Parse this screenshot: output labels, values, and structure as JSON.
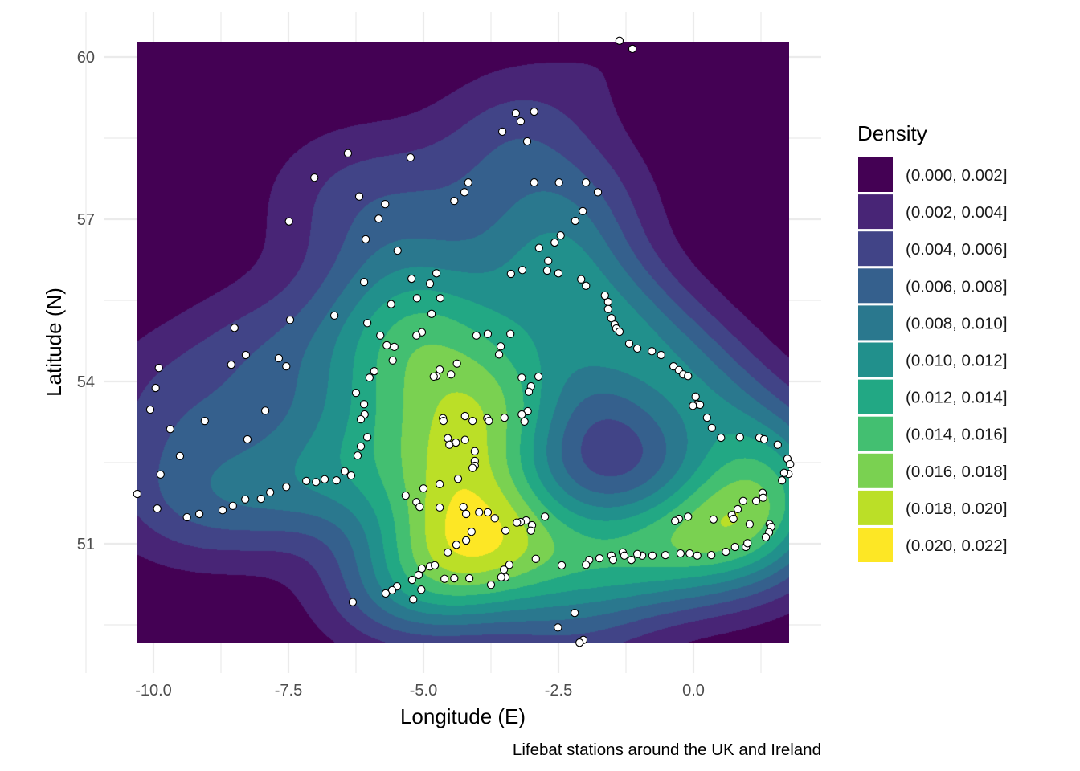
{
  "chart_data": {
    "type": "heatmap",
    "subtype": "filled 2D density contours with point overlay",
    "xlabel": "Longitude (E)",
    "ylabel": "Latitude (N)",
    "caption": "Lifebat stations around the UK and Ireland",
    "xlim": [
      -10.3,
      1.79
    ],
    "ylim": [
      49.17,
      60.3
    ],
    "grid": true,
    "x_ticks": [
      {
        "value": -10,
        "label": "-10.0"
      },
      {
        "value": -7.5,
        "label": "-7.5"
      },
      {
        "value": -5,
        "label": "-5.0"
      },
      {
        "value": -2.5,
        "label": "-2.5"
      },
      {
        "value": 0,
        "label": "0.0"
      }
    ],
    "y_ticks": [
      {
        "value": 51,
        "label": "51"
      },
      {
        "value": 54,
        "label": "54"
      },
      {
        "value": 57,
        "label": "57"
      },
      {
        "value": 60,
        "label": "60"
      }
    ],
    "legend": {
      "title": "Density",
      "placement": "right",
      "bins": [
        {
          "label": "(0.000, 0.002]",
          "lo": 0.0,
          "hi": 0.002,
          "color": "#440154"
        },
        {
          "label": "(0.002, 0.004]",
          "lo": 0.002,
          "hi": 0.004,
          "color": "#482576"
        },
        {
          "label": "(0.004, 0.006]",
          "lo": 0.004,
          "hi": 0.006,
          "color": "#414487"
        },
        {
          "label": "(0.006, 0.008]",
          "lo": 0.006,
          "hi": 0.008,
          "color": "#35608D"
        },
        {
          "label": "(0.008, 0.010]",
          "lo": 0.008,
          "hi": 0.01,
          "color": "#2A788E"
        },
        {
          "label": "(0.010, 0.012]",
          "lo": 0.01,
          "hi": 0.012,
          "color": "#21908C"
        },
        {
          "label": "(0.012, 0.014]",
          "lo": 0.012,
          "hi": 0.014,
          "color": "#22A884"
        },
        {
          "label": "(0.014, 0.016]",
          "lo": 0.014,
          "hi": 0.016,
          "color": "#43BF71"
        },
        {
          "label": "(0.016, 0.018]",
          "lo": 0.016,
          "hi": 0.018,
          "color": "#7AD151"
        },
        {
          "label": "(0.018, 0.020]",
          "lo": 0.018,
          "hi": 0.02,
          "color": "#BBDF27"
        },
        {
          "label": "(0.020, 0.022]",
          "lo": 0.02,
          "hi": 0.022,
          "color": "#FDE725"
        }
      ]
    },
    "points": [
      [
        -1.37,
        60.3
      ],
      [
        -1.13,
        60.15
      ],
      [
        -3.29,
        58.96
      ],
      [
        -2.95,
        58.99
      ],
      [
        -3.2,
        58.81
      ],
      [
        -3.54,
        58.62
      ],
      [
        -3.08,
        58.44
      ],
      [
        -6.4,
        58.22
      ],
      [
        -5.24,
        58.14
      ],
      [
        -7.02,
        57.77
      ],
      [
        -4.17,
        57.68
      ],
      [
        -2.95,
        57.68
      ],
      [
        -2.49,
        57.68
      ],
      [
        -1.99,
        57.68
      ],
      [
        -4.24,
        57.5
      ],
      [
        -1.77,
        57.5
      ],
      [
        -4.43,
        57.34
      ],
      [
        -6.19,
        57.42
      ],
      [
        -5.71,
        57.28
      ],
      [
        -5.83,
        57.01
      ],
      [
        -2.05,
        57.15
      ],
      [
        -2.19,
        56.97
      ],
      [
        -7.49,
        56.96
      ],
      [
        -6.07,
        56.63
      ],
      [
        -2.46,
        56.7
      ],
      [
        -2.57,
        56.57
      ],
      [
        -2.86,
        56.47
      ],
      [
        -5.48,
        56.42
      ],
      [
        -2.69,
        56.23
      ],
      [
        -2.71,
        56.05
      ],
      [
        -3.17,
        56.06
      ],
      [
        -3.38,
        55.99
      ],
      [
        -2.5,
        56.0
      ],
      [
        -4.76,
        56.0
      ],
      [
        -5.22,
        55.9
      ],
      [
        -4.88,
        55.81
      ],
      [
        -6.1,
        55.84
      ],
      [
        -2.08,
        55.89
      ],
      [
        -1.99,
        55.77
      ],
      [
        -5.12,
        55.54
      ],
      [
        -4.69,
        55.54
      ],
      [
        -5.6,
        55.43
      ],
      [
        -1.64,
        55.59
      ],
      [
        -1.58,
        55.47
      ],
      [
        -1.58,
        55.34
      ],
      [
        -1.52,
        55.17
      ],
      [
        -1.46,
        55.05
      ],
      [
        -1.43,
        54.98
      ],
      [
        -1.37,
        54.92
      ],
      [
        -6.65,
        55.22
      ],
      [
        -4.85,
        55.25
      ],
      [
        -7.47,
        55.14
      ],
      [
        -6.04,
        55.08
      ],
      [
        -8.5,
        54.99
      ],
      [
        -5.03,
        54.91
      ],
      [
        -5.13,
        54.85
      ],
      [
        -5.8,
        54.85
      ],
      [
        -4.02,
        54.85
      ],
      [
        -3.81,
        54.88
      ],
      [
        -3.39,
        54.88
      ],
      [
        -1.19,
        54.7
      ],
      [
        -1.04,
        54.61
      ],
      [
        -5.68,
        54.67
      ],
      [
        -5.54,
        54.64
      ],
      [
        -3.57,
        54.65
      ],
      [
        -3.6,
        54.5
      ],
      [
        -0.77,
        54.56
      ],
      [
        -0.6,
        54.49
      ],
      [
        -8.29,
        54.49
      ],
      [
        -7.68,
        54.43
      ],
      [
        -7.54,
        54.28
      ],
      [
        -5.57,
        54.39
      ],
      [
        -4.38,
        54.33
      ],
      [
        -4.7,
        54.22
      ],
      [
        -4.76,
        54.1
      ],
      [
        -4.49,
        54.13
      ],
      [
        -4.81,
        54.09
      ],
      [
        -8.56,
        54.31
      ],
      [
        -9.9,
        54.25
      ],
      [
        -0.37,
        54.28
      ],
      [
        -0.27,
        54.21
      ],
      [
        -0.19,
        54.13
      ],
      [
        -0.1,
        54.1
      ],
      [
        -3.18,
        54.07
      ],
      [
        -2.87,
        54.09
      ],
      [
        -5.91,
        54.19
      ],
      [
        -6.0,
        54.07
      ],
      [
        -9.96,
        53.88
      ],
      [
        -3.01,
        53.91
      ],
      [
        -3.05,
        53.81
      ],
      [
        -6.25,
        53.79
      ],
      [
        0.04,
        53.72
      ],
      [
        0.07,
        53.58
      ],
      [
        -0.01,
        53.55
      ],
      [
        0.12,
        53.57
      ],
      [
        -6.1,
        53.58
      ],
      [
        -10.06,
        53.48
      ],
      [
        -7.93,
        53.46
      ],
      [
        -3.07,
        53.45
      ],
      [
        -3.18,
        53.39
      ],
      [
        -3.13,
        53.26
      ],
      [
        -3.5,
        53.33
      ],
      [
        -3.82,
        53.32
      ],
      [
        -3.79,
        53.27
      ],
      [
        -4.09,
        53.27
      ],
      [
        -4.23,
        53.36
      ],
      [
        -4.64,
        53.32
      ],
      [
        -4.63,
        53.27
      ],
      [
        -6.09,
        53.39
      ],
      [
        -6.16,
        53.3
      ],
      [
        -9.05,
        53.27
      ],
      [
        0.25,
        53.33
      ],
      [
        -9.69,
        53.12
      ],
      [
        0.34,
        53.14
      ],
      [
        0.51,
        52.96
      ],
      [
        0.86,
        52.97
      ],
      [
        1.22,
        52.96
      ],
      [
        1.31,
        52.93
      ],
      [
        1.56,
        52.83
      ],
      [
        -6.04,
        52.97
      ],
      [
        -4.55,
        52.95
      ],
      [
        -4.4,
        52.87
      ],
      [
        -4.52,
        52.83
      ],
      [
        -4.23,
        52.92
      ],
      [
        -4.05,
        52.71
      ],
      [
        -6.16,
        52.8
      ],
      [
        -8.26,
        52.93
      ],
      [
        1.74,
        52.57
      ],
      [
        1.79,
        52.47
      ],
      [
        1.76,
        52.29
      ],
      [
        1.68,
        52.31
      ],
      [
        1.64,
        52.17
      ],
      [
        -6.22,
        52.63
      ],
      [
        -9.51,
        52.62
      ],
      [
        -4.05,
        52.53
      ],
      [
        -4.05,
        52.44
      ],
      [
        -4.09,
        52.4
      ],
      [
        -6.46,
        52.34
      ],
      [
        -6.34,
        52.26
      ],
      [
        -4.36,
        52.2
      ],
      [
        -7.17,
        52.16
      ],
      [
        -6.99,
        52.14
      ],
      [
        -6.83,
        52.19
      ],
      [
        -6.61,
        52.17
      ],
      [
        -9.87,
        52.28
      ],
      [
        -4.7,
        52.1
      ],
      [
        -5.0,
        52.02
      ],
      [
        -7.54,
        52.05
      ],
      [
        -7.84,
        51.95
      ],
      [
        -8.01,
        51.83
      ],
      [
        -8.3,
        51.82
      ],
      [
        -8.53,
        51.7
      ],
      [
        -8.72,
        51.62
      ],
      [
        -5.33,
        51.89
      ],
      [
        -5.13,
        51.77
      ],
      [
        -5.07,
        51.68
      ],
      [
        -4.7,
        51.67
      ],
      [
        1.28,
        51.94
      ],
      [
        1.29,
        51.85
      ],
      [
        1.16,
        51.79
      ],
      [
        0.92,
        51.79
      ],
      [
        0.82,
        51.64
      ],
      [
        0.71,
        51.53
      ],
      [
        0.74,
        51.46
      ],
      [
        -0.1,
        51.5
      ],
      [
        -0.27,
        51.46
      ],
      [
        -0.34,
        51.42
      ],
      [
        0.37,
        51.45
      ],
      [
        -9.93,
        51.65
      ],
      [
        -4.26,
        51.68
      ],
      [
        -4.21,
        51.55
      ],
      [
        -3.97,
        51.58
      ],
      [
        -3.81,
        51.58
      ],
      [
        -3.68,
        51.47
      ],
      [
        -3.1,
        51.43
      ],
      [
        -3.2,
        51.4
      ],
      [
        -3.27,
        51.39
      ],
      [
        -2.75,
        51.5
      ],
      [
        -2.99,
        51.34
      ],
      [
        -3.01,
        51.24
      ],
      [
        -9.15,
        51.55
      ],
      [
        -9.38,
        51.49
      ],
      [
        1.41,
        51.36
      ],
      [
        1.44,
        51.31
      ],
      [
        1.4,
        51.21
      ],
      [
        1.34,
        51.12
      ],
      [
        1.04,
        51.36
      ],
      [
        -4.11,
        51.22
      ],
      [
        -4.21,
        51.06
      ],
      [
        -4.39,
        50.98
      ],
      [
        -3.48,
        51.24
      ],
      [
        -4.55,
        50.84
      ],
      [
        -2.92,
        50.72
      ],
      [
        -1.31,
        50.84
      ],
      [
        -1.28,
        50.78
      ],
      [
        -1.52,
        50.78
      ],
      [
        -1.49,
        50.7
      ],
      [
        -1.74,
        50.73
      ],
      [
        -1.93,
        50.7
      ],
      [
        -1.99,
        50.61
      ],
      [
        -2.44,
        50.6
      ],
      [
        -1.15,
        50.7
      ],
      [
        -0.95,
        50.78
      ],
      [
        -1.04,
        50.81
      ],
      [
        -0.76,
        50.78
      ],
      [
        -0.52,
        50.79
      ],
      [
        -0.24,
        50.82
      ],
      [
        -0.07,
        50.82
      ],
      [
        0.07,
        50.78
      ],
      [
        0.33,
        50.79
      ],
      [
        0.6,
        50.85
      ],
      [
        0.77,
        50.94
      ],
      [
        0.97,
        50.94
      ],
      [
        1.0,
        51.01
      ],
      [
        -3.41,
        50.61
      ],
      [
        -3.51,
        50.52
      ],
      [
        -3.48,
        50.38
      ],
      [
        -4.88,
        50.58
      ],
      [
        -5.03,
        50.54
      ],
      [
        -4.79,
        50.6
      ],
      [
        -5.09,
        50.42
      ],
      [
        -5.21,
        50.33
      ],
      [
        -4.61,
        50.35
      ],
      [
        -4.43,
        50.36
      ],
      [
        -4.15,
        50.36
      ],
      [
        -3.75,
        50.24
      ],
      [
        -3.56,
        50.38
      ],
      [
        -5.49,
        50.21
      ],
      [
        -5.58,
        50.14
      ],
      [
        -5.7,
        50.08
      ],
      [
        -5.04,
        50.15
      ],
      [
        -5.19,
        49.97
      ],
      [
        -6.31,
        49.92
      ],
      [
        -2.2,
        49.72
      ],
      [
        -2.51,
        49.45
      ],
      [
        -2.04,
        49.22
      ],
      [
        -2.11,
        49.17
      ],
      [
        -10.3,
        51.92
      ]
    ]
  }
}
